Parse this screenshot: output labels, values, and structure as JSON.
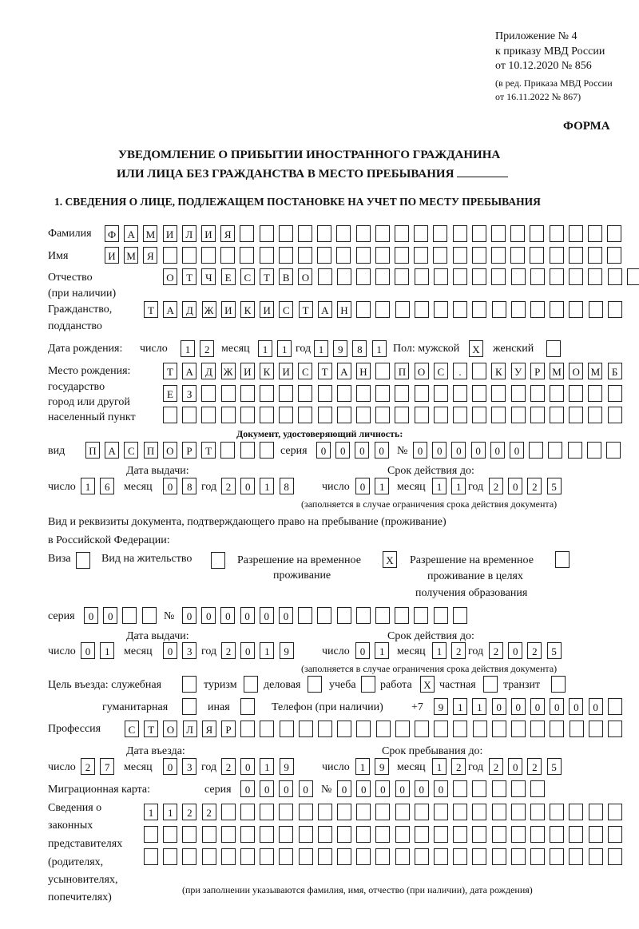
{
  "header": {
    "appendix": "Приложение № 4",
    "order": "к приказу МВД России",
    "order_date": "от 10.12.2020 № 856",
    "revision1": "(в ред. Приказа МВД России",
    "revision2": "от 16.11.2022 № 867)",
    "form_label": "ФОРМА",
    "title1": "УВЕДОМЛЕНИЕ О ПРИБЫТИИ ИНОСТРАННОГО ГРАЖДАНИНА",
    "title2": "ИЛИ ЛИЦА БЕЗ ГРАЖДАНСТВА В МЕСТО ПРЕБЫВАНИЯ",
    "section1": "1. СВЕДЕНИЯ О ЛИЦЕ, ПОДЛЕЖАЩЕМ ПОСТАНОВКЕ НА УЧЕТ ПО МЕСТУ ПРЕБЫВАНИЯ"
  },
  "labels": {
    "surname": "Фамилия",
    "name": "Имя",
    "patronymic": "Отчество",
    "patronymic2": "(при наличии)",
    "citizenship": "Гражданство,",
    "citizenship2": "подданство",
    "birth_date": "Дата рождения:",
    "day": "число",
    "month": "месяц",
    "year": "год",
    "sex": "Пол: мужской",
    "female": "женский",
    "birth_place": "Место рождения:",
    "bp2": "государство",
    "bp3": "город или другой",
    "bp4": "населенный пункт",
    "id_doc": "Документ, удостоверяющий личность:",
    "kind": "вид",
    "series": "серия",
    "number": "№",
    "issue_date": "Дата выдачи:",
    "valid_until": "Срок действия до:",
    "fill_note": "(заполняется в случае ограничения срока действия документа)",
    "right_doc1": "Вид и реквизиты документа, подтверждающего право на пребывание (проживание)",
    "right_doc2": "в Российской Федерации:",
    "visa": "Виза",
    "residence": "Вид на жительство",
    "temp_res1": "Разрешение на временное",
    "temp_res2": "проживание",
    "temp_edu1": "Разрешение на временное",
    "temp_edu2": "проживание в целях",
    "temp_edu3": "получения образования",
    "purpose": "Цель въезда: служебная",
    "tourism": "туризм",
    "business": "деловая",
    "study": "учеба",
    "work": "работа",
    "private": "частная",
    "transit": "транзит",
    "humanitarian": "гуманитарная",
    "other": "иная",
    "phone": "Телефон (при наличии)",
    "phone_prefix": "+7",
    "profession": "Профессия",
    "entry_date": "Дата въезда:",
    "stay_until": "Срок пребывания до:",
    "migration_card": "Миграционная карта:",
    "reps1": "Сведения о",
    "reps2": "законных",
    "reps3": "представителях",
    "reps4": "(родителях,",
    "reps5": "усыновителях,",
    "reps6": "попечителях)",
    "reps_note": "(при заполнении указываются фамилия, имя, отчество (при наличии), дата рождения)"
  },
  "fields": {
    "surname": [
      "Ф",
      "А",
      "М",
      "И",
      "Л",
      "И",
      "Я",
      "",
      "",
      "",
      "",
      "",
      "",
      "",
      "",
      "",
      "",
      "",
      "",
      "",
      "",
      "",
      "",
      "",
      "",
      "",
      ""
    ],
    "name": [
      "И",
      "М",
      "Я",
      "",
      "",
      "",
      "",
      "",
      "",
      "",
      "",
      "",
      "",
      "",
      "",
      "",
      "",
      "",
      "",
      "",
      "",
      "",
      "",
      "",
      "",
      "",
      ""
    ],
    "patronymic": [
      "О",
      "Т",
      "Ч",
      "Е",
      "С",
      "Т",
      "В",
      "О",
      "",
      "",
      "",
      "",
      "",
      "",
      "",
      "",
      "",
      "",
      "",
      "",
      "",
      "",
      "",
      "",
      ""
    ],
    "citizenship": [
      "Т",
      "А",
      "Д",
      "Ж",
      "И",
      "К",
      "И",
      "С",
      "Т",
      "А",
      "Н",
      "",
      "",
      "",
      "",
      "",
      "",
      "",
      "",
      "",
      "",
      "",
      "",
      "",
      ""
    ],
    "birth_day": [
      "1",
      "2"
    ],
    "birth_month": [
      "1",
      "1"
    ],
    "birth_year": [
      "1",
      "9",
      "8",
      "1"
    ],
    "sex_male": [
      "X"
    ],
    "sex_female": [
      ""
    ],
    "birth_place1": [
      "Т",
      "А",
      "Д",
      "Ж",
      "И",
      "К",
      "И",
      "С",
      "Т",
      "А",
      "Н",
      "",
      "П",
      "О",
      "С",
      ".",
      "",
      "К",
      "У",
      "Р",
      "М",
      "О",
      "М",
      "Б"
    ],
    "birth_place2": [
      "Е",
      "З",
      "",
      "",
      "",
      "",
      "",
      "",
      "",
      "",
      "",
      "",
      "",
      "",
      "",
      "",
      "",
      "",
      "",
      "",
      "",
      "",
      "",
      ""
    ],
    "birth_place3": [
      "",
      "",
      "",
      "",
      "",
      "",
      "",
      "",
      "",
      "",
      "",
      "",
      "",
      "",
      "",
      "",
      "",
      "",
      "",
      "",
      "",
      "",
      "",
      ""
    ],
    "id_kind": [
      "П",
      "А",
      "С",
      "П",
      "О",
      "Р",
      "Т",
      "",
      "",
      ""
    ],
    "id_series": [
      "0",
      "0",
      "0",
      "0"
    ],
    "id_number": [
      "0",
      "0",
      "0",
      "0",
      "0",
      "0",
      "",
      "",
      "",
      "",
      ""
    ],
    "id_issue_day": [
      "1",
      "6"
    ],
    "id_issue_month": [
      "0",
      "8"
    ],
    "id_issue_year": [
      "2",
      "0",
      "1",
      "8"
    ],
    "id_valid_day": [
      "0",
      "1"
    ],
    "id_valid_month": [
      "1",
      "1"
    ],
    "id_valid_year": [
      "2",
      "0",
      "2",
      "5"
    ],
    "visa": [
      ""
    ],
    "residence": [
      ""
    ],
    "temp_res": [
      "X"
    ],
    "temp_edu": [
      ""
    ],
    "rd_series": [
      "0",
      "0",
      "",
      ""
    ],
    "rd_number": [
      "0",
      "0",
      "0",
      "0",
      "0",
      "0",
      "",
      "",
      "",
      "",
      "",
      "",
      "",
      "",
      ""
    ],
    "rd_issue_day": [
      "0",
      "1"
    ],
    "rd_issue_month": [
      "0",
      "3"
    ],
    "rd_issue_year": [
      "2",
      "0",
      "1",
      "9"
    ],
    "rd_valid_day": [
      "0",
      "1"
    ],
    "rd_valid_month": [
      "1",
      "2"
    ],
    "rd_valid_year": [
      "2",
      "0",
      "2",
      "5"
    ],
    "p_official": [
      ""
    ],
    "p_tourism": [
      ""
    ],
    "p_business": [
      ""
    ],
    "p_study": [
      ""
    ],
    "p_work": [
      "X"
    ],
    "p_private": [
      ""
    ],
    "p_transit": [
      ""
    ],
    "p_humanitarian": [
      ""
    ],
    "p_other": [
      ""
    ],
    "phone": [
      "9",
      "1",
      "1",
      "0",
      "0",
      "0",
      "0",
      "0",
      "0",
      ""
    ],
    "profession": [
      "С",
      "Т",
      "О",
      "Л",
      "Я",
      "Р",
      "",
      "",
      "",
      "",
      "",
      "",
      "",
      "",
      "",
      "",
      "",
      "",
      "",
      "",
      "",
      "",
      "",
      "",
      "",
      ""
    ],
    "entry_day": [
      "2",
      "7"
    ],
    "entry_month": [
      "0",
      "3"
    ],
    "entry_year": [
      "2",
      "0",
      "1",
      "9"
    ],
    "stay_day": [
      "1",
      "9"
    ],
    "stay_month": [
      "1",
      "2"
    ],
    "stay_year": [
      "2",
      "0",
      "2",
      "5"
    ],
    "mc_series": [
      "0",
      "0",
      "0",
      "0"
    ],
    "mc_number": [
      "0",
      "0",
      "0",
      "0",
      "0",
      "0",
      "",
      "",
      "",
      "",
      ""
    ],
    "reps1": [
      "1",
      "1",
      "2",
      "2",
      "",
      "",
      "",
      "",
      "",
      "",
      "",
      "",
      "",
      "",
      "",
      "",
      "",
      "",
      "",
      "",
      "",
      "",
      "",
      "",
      ""
    ],
    "reps2": [
      "",
      "",
      "",
      "",
      "",
      "",
      "",
      "",
      "",
      "",
      "",
      "",
      "",
      "",
      "",
      "",
      "",
      "",
      "",
      "",
      "",
      "",
      "",
      "",
      ""
    ],
    "reps3": [
      "",
      "",
      "",
      "",
      "",
      "",
      "",
      "",
      "",
      "",
      "",
      "",
      "",
      "",
      "",
      "",
      "",
      "",
      "",
      "",
      "",
      "",
      "",
      "",
      ""
    ]
  }
}
